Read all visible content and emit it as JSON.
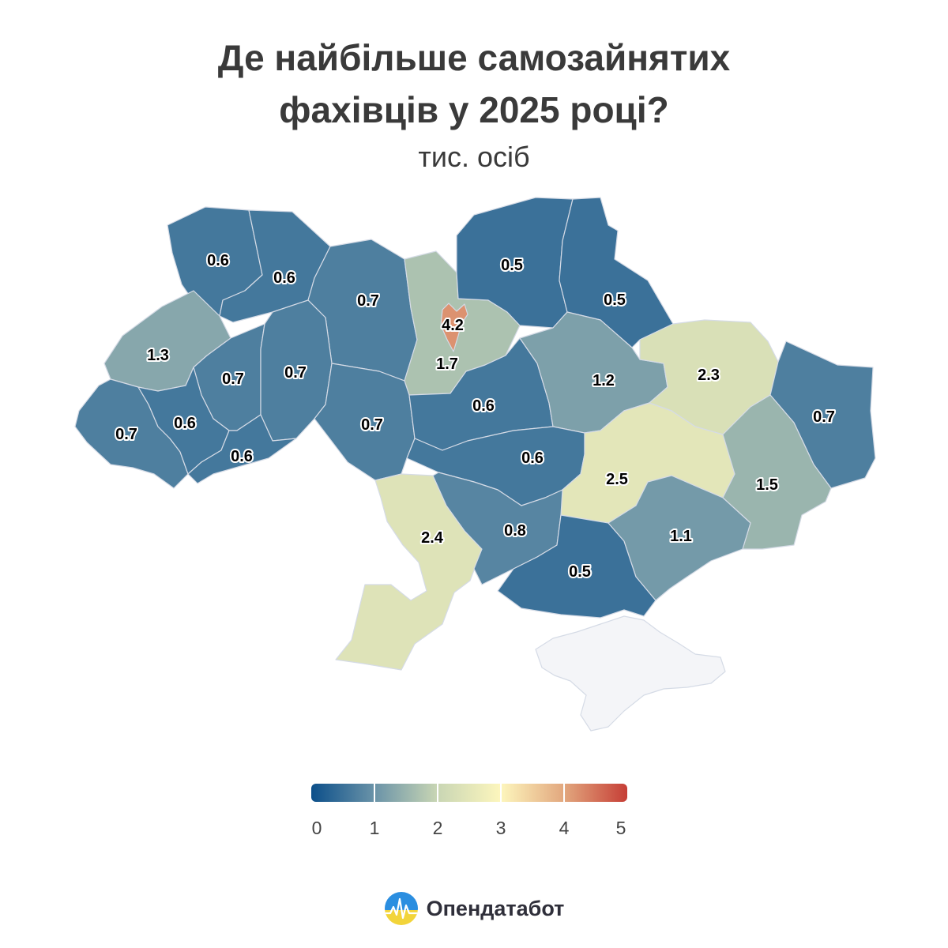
{
  "title_lines": [
    "Де найбільше самозайнятих",
    "фахівців у 2025 році?"
  ],
  "subtitle": "тис. осіб",
  "brand": "Опендатабот",
  "colors": {
    "scale": [
      "#0c4f8a",
      "#6a93a8",
      "#c9d6b4",
      "#fdf6bd",
      "#e2a77e",
      "#c63e36"
    ],
    "no_data": "#f4f5f8",
    "border": "#d5dbe6",
    "logo_top": "#2b8ee0",
    "logo_bottom": "#f2d43a"
  },
  "chart_data": {
    "type": "choropleth",
    "unit": "тис. осіб",
    "color_range": [
      0,
      5
    ],
    "legend": {
      "ticks": [
        "0",
        "1",
        "2",
        "3",
        "4",
        "5"
      ]
    },
    "regions": [
      {
        "id": "volyn",
        "value": 0.6
      },
      {
        "id": "rivne",
        "value": 0.6
      },
      {
        "id": "zhytomyr",
        "value": 0.7
      },
      {
        "id": "kyiv-oblast",
        "value": 1.7
      },
      {
        "id": "kyiv-city",
        "value": 4.2
      },
      {
        "id": "chernihiv",
        "value": 0.5
      },
      {
        "id": "sumy",
        "value": 0.5
      },
      {
        "id": "lviv",
        "value": 1.3
      },
      {
        "id": "ternopil",
        "value": 0.7
      },
      {
        "id": "khmelnytskyi",
        "value": 0.7
      },
      {
        "id": "vinnytsia",
        "value": 0.7
      },
      {
        "id": "cherkasy",
        "value": 0.6
      },
      {
        "id": "poltava",
        "value": 1.2
      },
      {
        "id": "kharkiv",
        "value": 2.3
      },
      {
        "id": "luhansk",
        "value": 0.7
      },
      {
        "id": "zakarpattia",
        "value": 0.7
      },
      {
        "id": "ivano-frankivsk",
        "value": 0.6
      },
      {
        "id": "chernivtsi",
        "value": 0.6
      },
      {
        "id": "kirovohrad",
        "value": 0.6
      },
      {
        "id": "dnipropetrovsk",
        "value": 2.5
      },
      {
        "id": "donetsk",
        "value": 1.5
      },
      {
        "id": "odesa",
        "value": 2.4
      },
      {
        "id": "mykolaiv",
        "value": 0.8
      },
      {
        "id": "kherson",
        "value": 0.5
      },
      {
        "id": "zaporizhzhia",
        "value": 1.1
      }
    ]
  }
}
